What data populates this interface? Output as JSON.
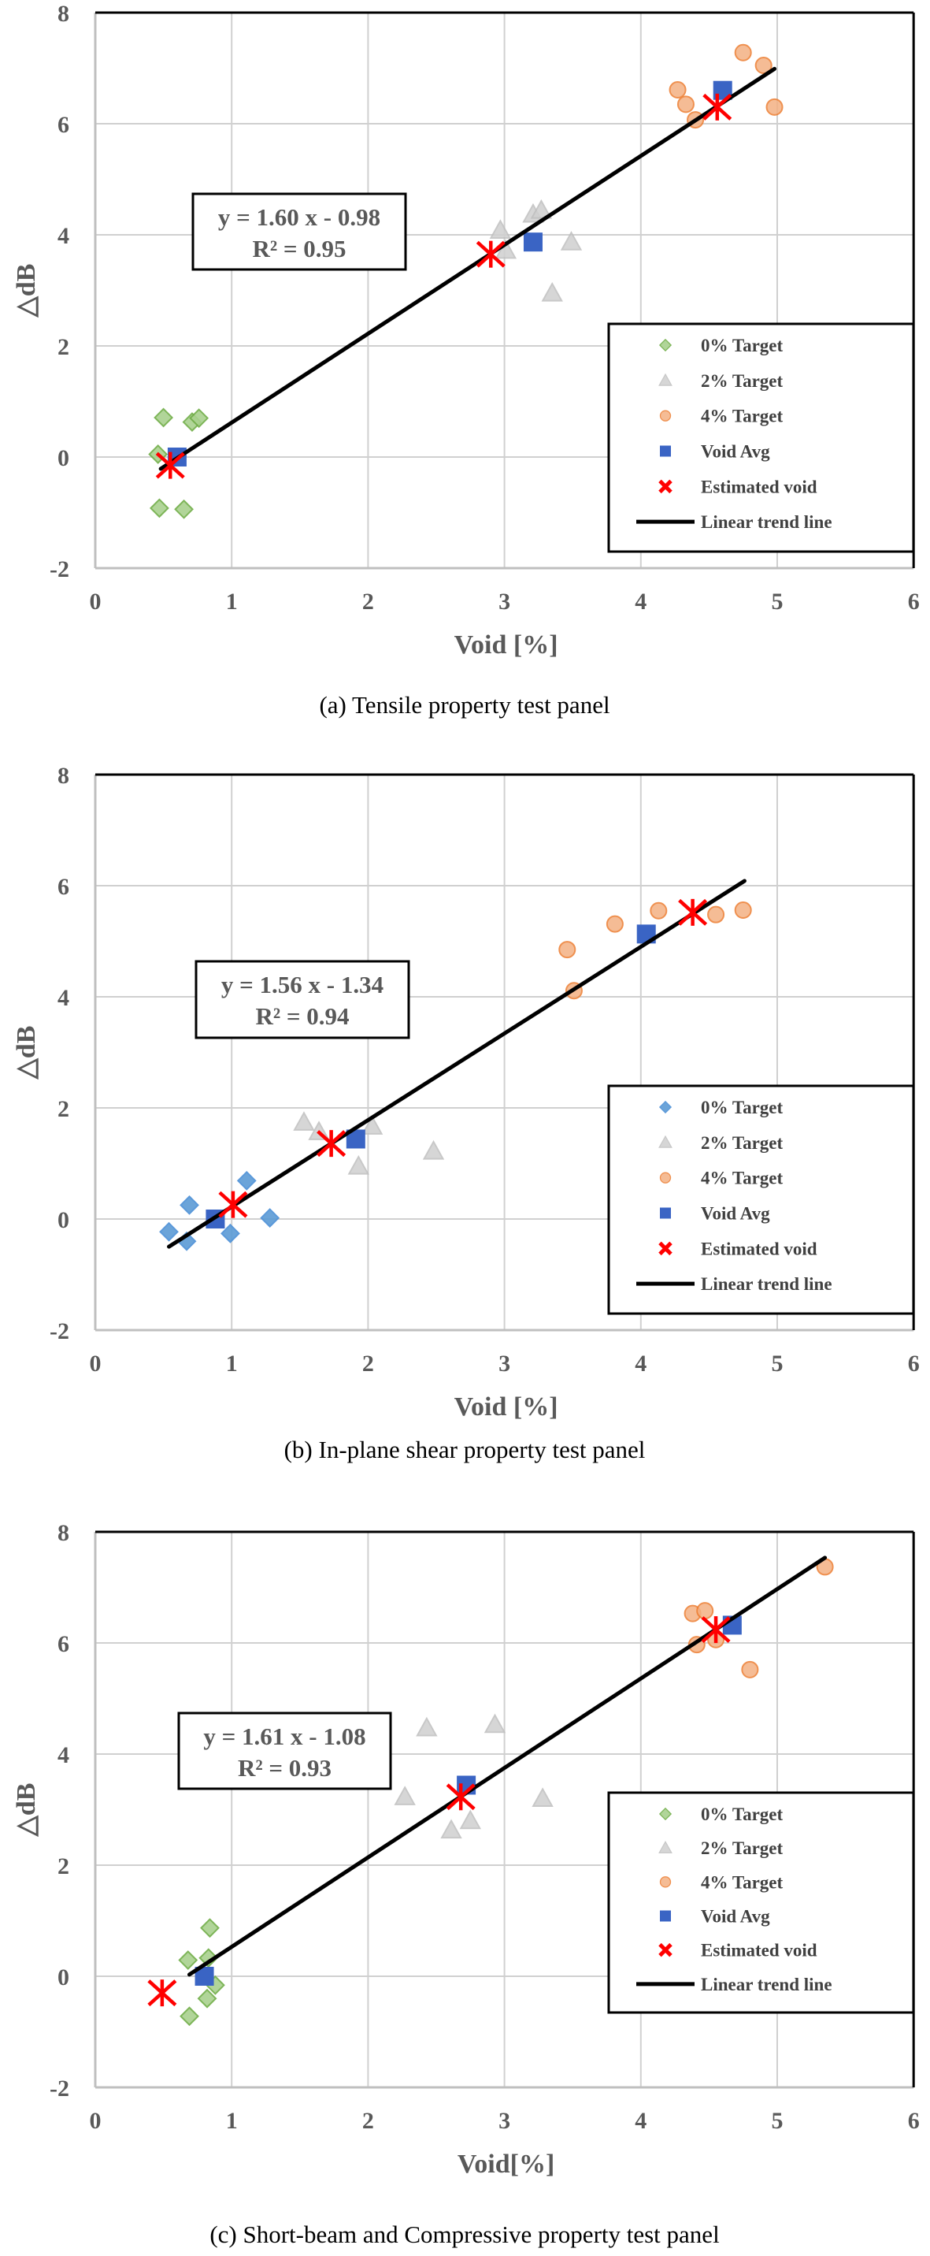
{
  "chart_data": [
    {
      "type": "scatter",
      "title": "(a) Tensile property test panel",
      "xlabel": "Void [%]",
      "ylabel": "△dB",
      "xlim": [
        0,
        6
      ],
      "ylim": [
        -2,
        8
      ],
      "xticks": [
        "0",
        "1",
        "2",
        "3",
        "4",
        "5",
        "6"
      ],
      "yticks": [
        "-2",
        "0",
        "2",
        "4",
        "6",
        "8"
      ],
      "grid": true,
      "legend_position": "bottom-right",
      "equation": "y = 1.60 x - 0.98",
      "r2": "R² = 0.95",
      "trendline": {
        "name": "Linear trend line",
        "slope": 1.6,
        "intercept": -0.98,
        "x_range": [
          0.48,
          4.98
        ]
      },
      "series": [
        {
          "name": "0% Target",
          "marker": "diamond",
          "color": "#70ad47",
          "fill": "#a9d18e",
          "points": [
            [
              0.5,
              0.71
            ],
            [
              0.71,
              0.63
            ],
            [
              0.76,
              0.7
            ],
            [
              0.46,
              0.05
            ],
            [
              0.47,
              -0.92
            ],
            [
              0.65,
              -0.94
            ]
          ]
        },
        {
          "name": "2% Target",
          "marker": "triangle",
          "color": "#bfbfbf",
          "fill": "#d0d0d0",
          "points": [
            [
              2.97,
              4.08
            ],
            [
              3.01,
              3.72
            ],
            [
              3.21,
              4.37
            ],
            [
              3.27,
              4.44
            ],
            [
              3.49,
              3.87
            ],
            [
              3.35,
              2.95
            ]
          ]
        },
        {
          "name": "4% Target",
          "marker": "circle",
          "color": "#ed7d31",
          "fill": "#f4b183",
          "points": [
            [
              4.75,
              7.28
            ],
            [
              4.9,
              7.05
            ],
            [
              4.27,
              6.61
            ],
            [
              4.33,
              6.35
            ],
            [
              4.4,
              6.07
            ],
            [
              4.98,
              6.3
            ]
          ]
        },
        {
          "name": "Void Avg",
          "marker": "square",
          "color": "#3a64c4",
          "fill": "#3a64c4",
          "points": [
            [
              0.6,
              0.0
            ],
            [
              3.21,
              3.87
            ],
            [
              4.6,
              6.6
            ]
          ]
        },
        {
          "name": "Estimated void",
          "marker": "asterisk",
          "color": "#ff0000",
          "fill": "#ff0000",
          "points": [
            [
              0.55,
              -0.15
            ],
            [
              2.9,
              3.65
            ],
            [
              4.56,
              6.3
            ]
          ]
        }
      ]
    },
    {
      "type": "scatter",
      "title": "(b) In-plane shear property test panel",
      "xlabel": "Void [%]",
      "ylabel": "△dB",
      "xlim": [
        0,
        6
      ],
      "ylim": [
        -2,
        8
      ],
      "xticks": [
        "0",
        "1",
        "2",
        "3",
        "4",
        "5",
        "6"
      ],
      "yticks": [
        "-2",
        "0",
        "2",
        "4",
        "6",
        "8"
      ],
      "grid": true,
      "legend_position": "bottom-right",
      "equation": "y = 1.56 x - 1.34",
      "r2": "R² = 0.94",
      "trendline": {
        "name": "Linear trend line",
        "slope": 1.56,
        "intercept": -1.34,
        "x_range": [
          0.54,
          4.76
        ]
      },
      "series": [
        {
          "name": "0% Target",
          "marker": "diamond",
          "color": "#4a8fd6",
          "fill": "#5b9bd5",
          "points": [
            [
              0.54,
              -0.23
            ],
            [
              0.67,
              -0.4
            ],
            [
              0.69,
              0.25
            ],
            [
              0.99,
              -0.26
            ],
            [
              1.11,
              0.69
            ],
            [
              1.28,
              0.02
            ]
          ]
        },
        {
          "name": "2% Target",
          "marker": "triangle",
          "color": "#bfbfbf",
          "fill": "#d0d0d0",
          "points": [
            [
              1.53,
              1.74
            ],
            [
              1.64,
              1.57
            ],
            [
              2.03,
              1.67
            ],
            [
              1.93,
              0.95
            ],
            [
              2.48,
              1.22
            ]
          ]
        },
        {
          "name": "4% Target",
          "marker": "circle",
          "color": "#ed7d31",
          "fill": "#f4b183",
          "points": [
            [
              3.46,
              4.85
            ],
            [
              3.81,
              5.31
            ],
            [
              4.13,
              5.55
            ],
            [
              4.55,
              5.48
            ],
            [
              4.75,
              5.56
            ],
            [
              3.51,
              4.11
            ]
          ]
        },
        {
          "name": "Void Avg",
          "marker": "square",
          "color": "#3a64c4",
          "fill": "#3a64c4",
          "points": [
            [
              0.88,
              0.0
            ],
            [
              1.91,
              1.44
            ],
            [
              4.04,
              5.13
            ]
          ]
        },
        {
          "name": "Estimated void",
          "marker": "asterisk",
          "color": "#ff0000",
          "fill": "#ff0000",
          "points": [
            [
              1.01,
              0.26
            ],
            [
              1.73,
              1.36
            ],
            [
              4.38,
              5.52
            ]
          ]
        }
      ]
    },
    {
      "type": "scatter",
      "title": "(c) Short-beam and Compressive property test panel",
      "xlabel": "Void[%]",
      "ylabel": "△dB",
      "xlim": [
        0,
        6
      ],
      "ylim": [
        -2,
        8
      ],
      "xticks": [
        "0",
        "1",
        "2",
        "3",
        "4",
        "5",
        "6"
      ],
      "yticks": [
        "-2",
        "0",
        "2",
        "4",
        "6",
        "8"
      ],
      "grid": true,
      "legend_position": "bottom-right",
      "equation": "y = 1.61 x - 1.08",
      "r2": "R² = 0.93",
      "trendline": {
        "name": "Linear trend line",
        "slope": 1.61,
        "intercept": -1.08,
        "x_range": [
          0.69,
          5.35
        ]
      },
      "series": [
        {
          "name": "0% Target",
          "marker": "diamond",
          "color": "#70ad47",
          "fill": "#a9d18e",
          "points": [
            [
              0.84,
              0.87
            ],
            [
              0.68,
              0.29
            ],
            [
              0.83,
              0.33
            ],
            [
              0.88,
              -0.16
            ],
            [
              0.82,
              -0.4
            ],
            [
              0.69,
              -0.72
            ]
          ]
        },
        {
          "name": "2% Target",
          "marker": "triangle",
          "color": "#bfbfbf",
          "fill": "#d0d0d0",
          "points": [
            [
              2.27,
              3.23
            ],
            [
              2.61,
              2.63
            ],
            [
              2.75,
              2.8
            ],
            [
              2.43,
              4.47
            ],
            [
              2.93,
              4.53
            ],
            [
              3.28,
              3.2
            ]
          ]
        },
        {
          "name": "4% Target",
          "marker": "circle",
          "color": "#ed7d31",
          "fill": "#f4b183",
          "points": [
            [
              5.35,
              7.37
            ],
            [
              4.38,
              6.53
            ],
            [
              4.47,
              6.58
            ],
            [
              4.41,
              5.97
            ],
            [
              4.55,
              6.06
            ],
            [
              4.8,
              5.52
            ]
          ]
        },
        {
          "name": "Void Avg",
          "marker": "square",
          "color": "#3a64c4",
          "fill": "#3a64c4",
          "points": [
            [
              0.8,
              0.0
            ],
            [
              2.72,
              3.44
            ],
            [
              4.67,
              6.32
            ]
          ]
        },
        {
          "name": "Estimated void",
          "marker": "asterisk",
          "color": "#ff0000",
          "fill": "#ff0000",
          "points": [
            [
              0.49,
              -0.3
            ],
            [
              2.68,
              3.23
            ],
            [
              4.55,
              6.24
            ]
          ]
        }
      ]
    }
  ]
}
